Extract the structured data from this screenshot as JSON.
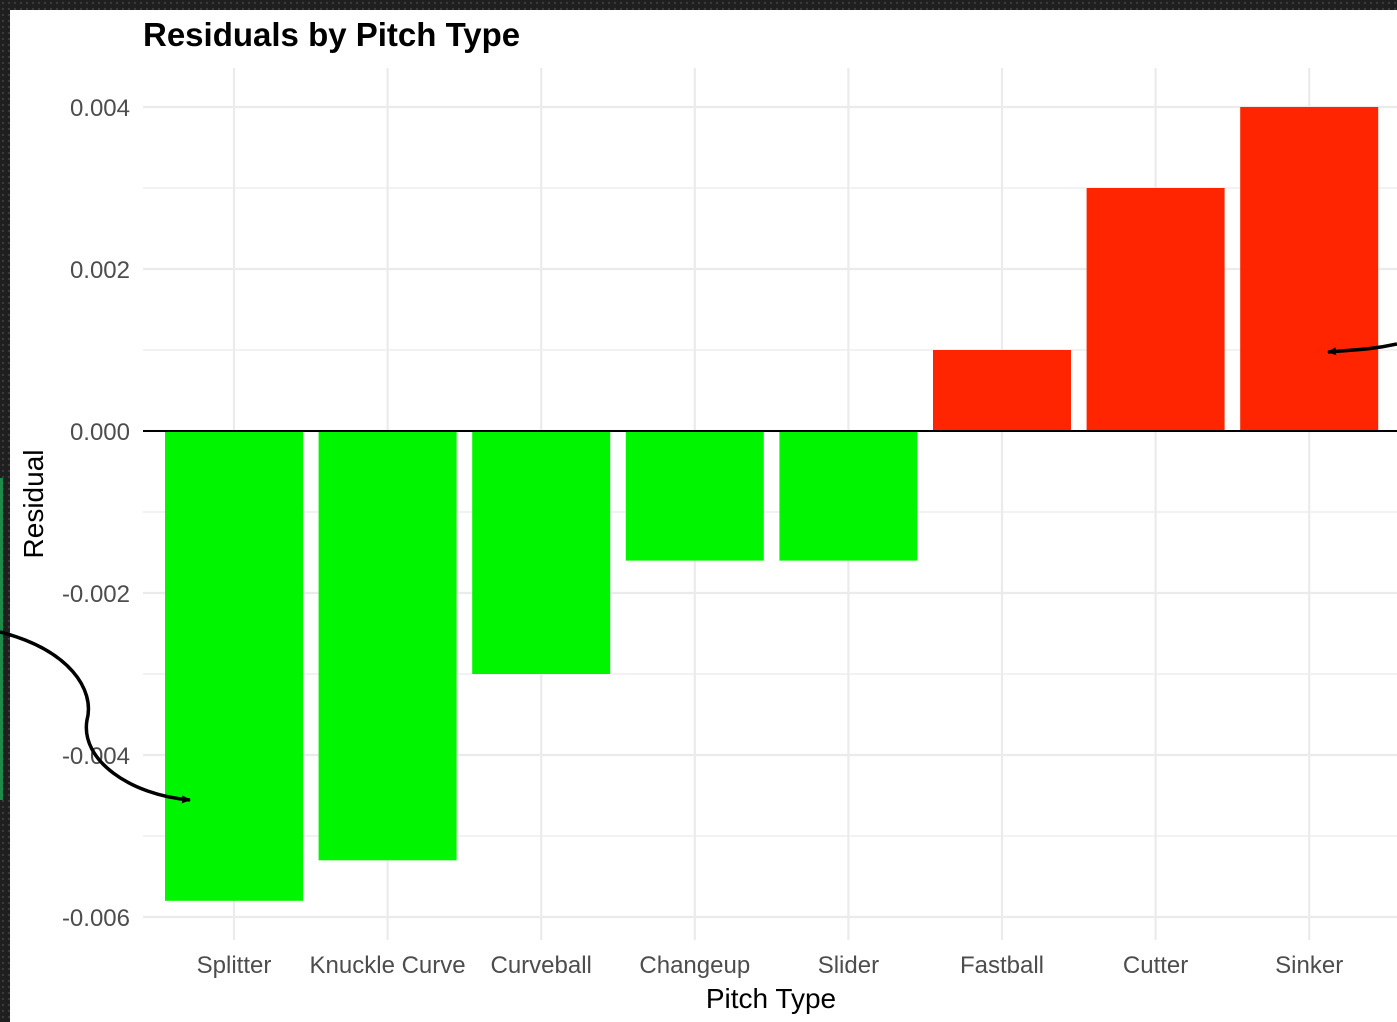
{
  "chart_data": {
    "type": "bar",
    "title": "Residuals by Pitch Type",
    "xlabel": "Pitch Type",
    "ylabel": "Residual",
    "categories": [
      "Splitter",
      "Knuckle Curve",
      "Curveball",
      "Changeup",
      "Slider",
      "Fastball",
      "Cutter",
      "Sinker"
    ],
    "values": [
      -0.0058,
      -0.0053,
      -0.003,
      -0.0016,
      -0.0016,
      0.001,
      0.003,
      0.004
    ],
    "ylim": [
      -0.0062,
      0.0044
    ],
    "yticks": [
      0.004,
      0.002,
      0.0,
      -0.002,
      -0.004,
      -0.006
    ],
    "ytick_labels": [
      "0.004",
      "0.002",
      "0.000",
      "-0.002",
      "-0.004",
      "-0.006"
    ],
    "grid": true,
    "colors": {
      "negative": "#00f500",
      "positive": "#ff2500",
      "grid": "#ebebeb",
      "zero_line": "#000000"
    },
    "annotations": [
      "curved arrow pointing to Splitter bar",
      "arrow pointing to Sinker bar"
    ]
  }
}
